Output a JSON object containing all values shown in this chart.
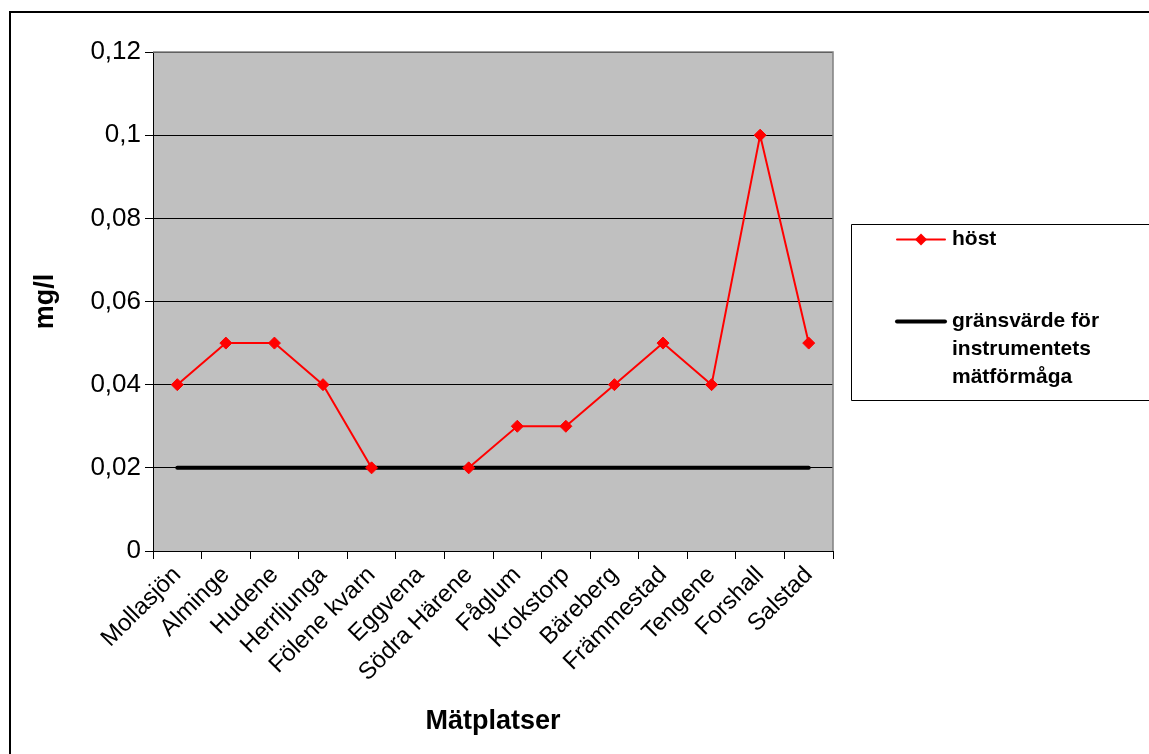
{
  "chart_data": {
    "type": "line",
    "xlabel": "Mätplatser",
    "ylabel": "mg/l",
    "categories": [
      "Mollasjön",
      "Alminge",
      "Hudene",
      "Herrljunga",
      "Fölene kvarn",
      "Eggvena",
      "Södra Härene",
      "Fåglum",
      "Krokstorp",
      "Bäreberg",
      "Främmestad",
      "Tengene",
      "Forshall",
      "Salstad"
    ],
    "series": [
      {
        "name": "höst",
        "color": "#ff0000",
        "marker": "diamond",
        "values": [
          0.04,
          0.05,
          0.05,
          0.04,
          0.02,
          null,
          0.02,
          0.03,
          0.03,
          0.04,
          0.05,
          0.04,
          0.1,
          0.05
        ]
      },
      {
        "name": "gränsvärde för instrumentets mätförmåga",
        "color": "#000000",
        "marker": "none",
        "values": [
          0.02,
          0.02,
          0.02,
          0.02,
          0.02,
          0.02,
          0.02,
          0.02,
          0.02,
          0.02,
          0.02,
          0.02,
          0.02,
          0.02
        ]
      }
    ],
    "ylim": [
      0,
      0.12
    ],
    "yticks": [
      0,
      {
        "value": 0.02,
        "label": "0,02"
      },
      {
        "value": 0.04,
        "label": "0,04"
      },
      {
        "value": 0.06,
        "label": "0,06"
      },
      {
        "value": 0.08,
        "label": "0,08"
      },
      {
        "value": 0.1,
        "label": "0,1"
      },
      {
        "value": 0.12,
        "label": "0,12"
      }
    ],
    "grid": "y",
    "legend": "right"
  }
}
